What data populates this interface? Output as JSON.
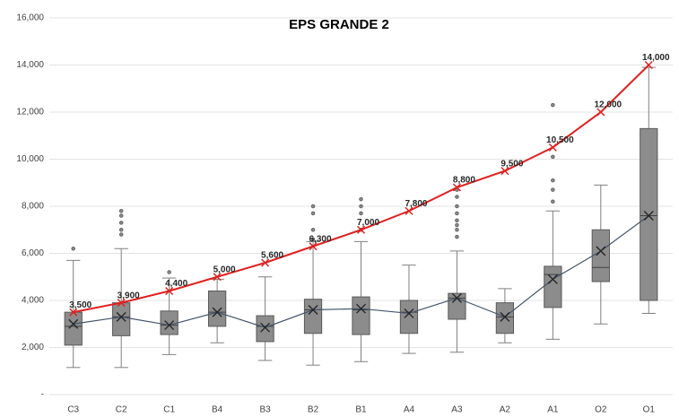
{
  "chart_data": {
    "type": "box",
    "title": "EPS GRANDE 2",
    "categories": [
      "C3",
      "C2",
      "C1",
      "B4",
      "B3",
      "B2",
      "B1",
      "A4",
      "A3",
      "A2",
      "A1",
      "O2",
      "O1"
    ],
    "ylim": [
      0,
      16000
    ],
    "yticks": [
      {
        "value": 0,
        "label": "-"
      },
      {
        "value": 2000,
        "label": "2,000"
      },
      {
        "value": 4000,
        "label": "4,000"
      },
      {
        "value": 6000,
        "label": "6,000"
      },
      {
        "value": 8000,
        "label": "8,000"
      },
      {
        "value": 10000,
        "label": "10,000"
      },
      {
        "value": 12000,
        "label": "12,000"
      },
      {
        "value": 14000,
        "label": "14,000"
      },
      {
        "value": 16000,
        "label": "16,000"
      }
    ],
    "grid": true,
    "box_color": "#8c8c8c",
    "mean_color": "#44546a",
    "boxes": [
      {
        "whisker_low": 1150,
        "q1": 2100,
        "median": 2900,
        "q3": 3500,
        "whisker_high": 5700,
        "mean": 3000,
        "outliers": [
          6200
        ]
      },
      {
        "whisker_low": 1150,
        "q1": 2500,
        "median": 3300,
        "q3": 3900,
        "whisker_high": 6200,
        "mean": 3300,
        "outliers": [
          6800,
          7000,
          7300,
          7600,
          7800
        ]
      },
      {
        "whisker_low": 1700,
        "q1": 2550,
        "median": 2950,
        "q3": 3550,
        "whisker_high": 4950,
        "mean": 2950,
        "outliers": [
          5200
        ]
      },
      {
        "whisker_low": 2200,
        "q1": 2900,
        "median": 3500,
        "q3": 4400,
        "whisker_high": 4900,
        "mean": 3500,
        "outliers": []
      },
      {
        "whisker_low": 1450,
        "q1": 2250,
        "median": 2900,
        "q3": 3350,
        "whisker_high": 5000,
        "mean": 2850,
        "outliers": []
      },
      {
        "whisker_low": 1250,
        "q1": 2600,
        "median": 3600,
        "q3": 4050,
        "whisker_high": 6500,
        "mean": 3600,
        "outliers": [
          6600,
          7000,
          7700,
          8000
        ]
      },
      {
        "whisker_low": 1400,
        "q1": 2550,
        "median": 3600,
        "q3": 4150,
        "whisker_high": 6500,
        "mean": 3650,
        "outliers": [
          7000,
          7700,
          8000,
          8300
        ]
      },
      {
        "whisker_low": 1750,
        "q1": 2600,
        "median": 3500,
        "q3": 4000,
        "whisker_high": 5500,
        "mean": 3450,
        "outliers": []
      },
      {
        "whisker_low": 1800,
        "q1": 3200,
        "median": 4100,
        "q3": 4300,
        "whisker_high": 6100,
        "mean": 4100,
        "outliers": [
          6700,
          7000,
          7200,
          7400,
          7700,
          8000,
          8400,
          8700
        ]
      },
      {
        "whisker_low": 2200,
        "q1": 2600,
        "median": 3300,
        "q3": 3900,
        "whisker_high": 4500,
        "mean": 3300,
        "outliers": []
      },
      {
        "whisker_low": 2350,
        "q1": 3700,
        "median": 5100,
        "q3": 5450,
        "whisker_high": 7800,
        "mean": 4900,
        "outliers": [
          8200,
          8700,
          9100,
          10100,
          12300
        ]
      },
      {
        "whisker_low": 3000,
        "q1": 4800,
        "median": 5400,
        "q3": 7000,
        "whisker_high": 8900,
        "mean": 6100,
        "outliers": []
      },
      {
        "whisker_low": 3450,
        "q1": 4000,
        "median": 7600,
        "q3": 11300,
        "whisker_high": 13900,
        "mean": 7600,
        "outliers": []
      }
    ],
    "line": {
      "color": "#e02020",
      "values": [
        3500,
        3900,
        4400,
        5000,
        5600,
        6300,
        7000,
        7800,
        8800,
        9500,
        10500,
        12000,
        14000
      ],
      "value_labels": [
        "3,500",
        "3,900",
        "4,400",
        "5,000",
        "5,600",
        "6,300",
        "7,000",
        "7,800",
        "8,800",
        "9,500",
        "10,500",
        "12,000",
        "14,000"
      ]
    }
  }
}
